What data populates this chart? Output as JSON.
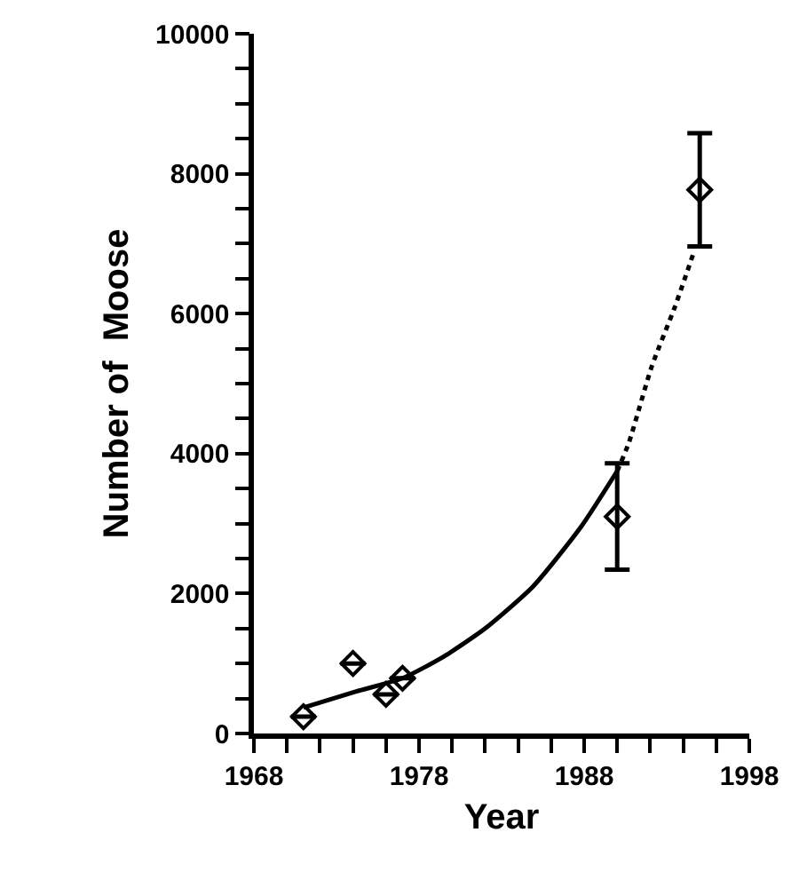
{
  "chart_data": {
    "type": "scatter",
    "xlabel": "Year",
    "ylabel": "Number of  Moose",
    "xlim": [
      1968,
      1998
    ],
    "ylim": [
      0,
      10000
    ],
    "xticks": [
      1968,
      {
        "value": 1970,
        "label": null
      },
      {
        "value": 1972,
        "label": null
      },
      {
        "value": 1974,
        "label": null
      },
      {
        "value": 1976,
        "label": null
      },
      1978,
      {
        "value": 1980,
        "label": null
      },
      {
        "value": 1982,
        "label": null
      },
      {
        "value": 1984,
        "label": null
      },
      {
        "value": 1986,
        "label": null
      },
      1988,
      {
        "value": 1990,
        "label": null
      },
      {
        "value": 1992,
        "label": null
      },
      {
        "value": 1994,
        "label": null
      },
      {
        "value": 1996,
        "label": null
      },
      1998
    ],
    "yticks": [
      0,
      {
        "value": 500,
        "label": null
      },
      {
        "value": 1000,
        "label": null
      },
      {
        "value": 1500,
        "label": null
      },
      2000,
      {
        "value": 2500,
        "label": null
      },
      {
        "value": 3000,
        "label": null
      },
      {
        "value": 3500,
        "label": null
      },
      4000,
      {
        "value": 4500,
        "label": null
      },
      {
        "value": 5000,
        "label": null
      },
      {
        "value": 5500,
        "label": null
      },
      6000,
      {
        "value": 6500,
        "label": null
      },
      {
        "value": 7000,
        "label": null
      },
      {
        "value": 7500,
        "label": null
      },
      8000,
      {
        "value": 8500,
        "label": null
      },
      {
        "value": 9000,
        "label": null
      },
      {
        "value": 9500,
        "label": null
      },
      10000
    ],
    "grid": false,
    "series": [
      {
        "marker": "diamond",
        "color": "#000000",
        "x": [
          1971,
          1974,
          1976,
          1977,
          1990,
          1995
        ],
        "values": [
          240,
          1000,
          560,
          790,
          3100,
          7770
        ],
        "errors": [
          null,
          null,
          null,
          null,
          760,
          810
        ]
      },
      {
        "type": "line",
        "marker": "none",
        "line_style": "solid",
        "color": "#000000",
        "x": [
          1971,
          1974.2,
          1977,
          1979.5,
          1982,
          1984.9,
          1987.8,
          1990
        ],
        "values": [
          370,
          600,
          790,
          1100,
          1500,
          2100,
          2950,
          3750
        ]
      },
      {
        "type": "line",
        "marker": "none",
        "line_style": "dotted",
        "color": "#000000",
        "x": [
          1990,
          1990.7,
          1992.1,
          1993.5,
          1994.6
        ],
        "values": [
          3750,
          4150,
          5250,
          6100,
          6850
        ]
      }
    ]
  }
}
